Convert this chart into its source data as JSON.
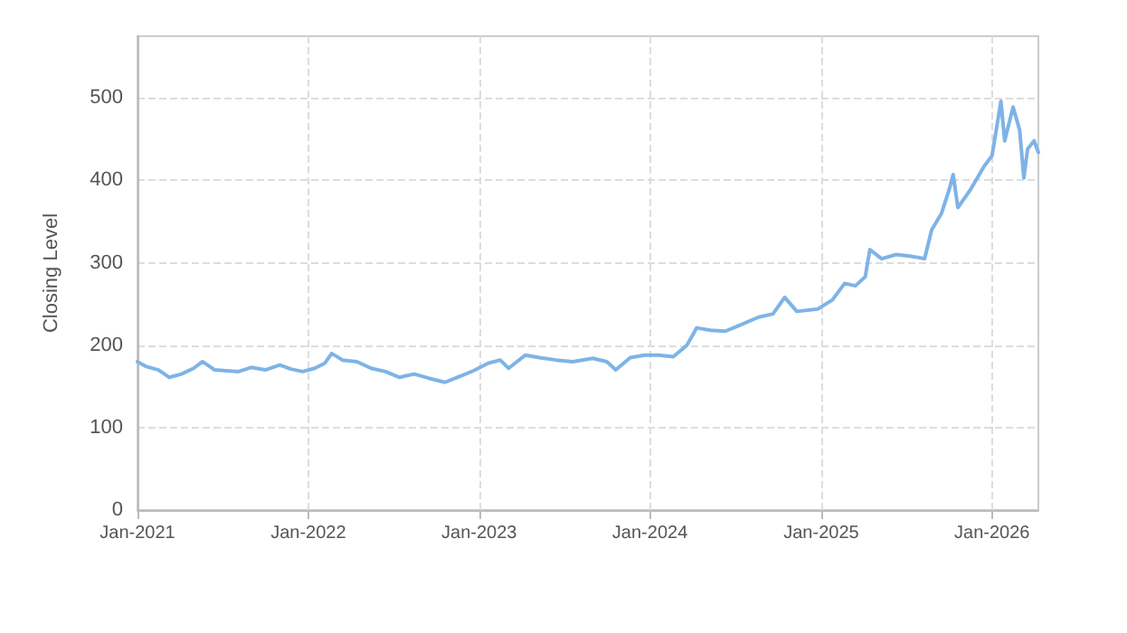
{
  "chart_data": {
    "type": "line",
    "ylabel": "Closing Level",
    "x": [
      "2021-01-01",
      "2021-01-20",
      "2021-02-15",
      "2021-03-10",
      "2021-04-05",
      "2021-05-01",
      "2021-05-20",
      "2021-06-15",
      "2021-07-10",
      "2021-08-05",
      "2021-09-01",
      "2021-10-01",
      "2021-11-01",
      "2021-11-25",
      "2021-12-20",
      "2022-01-15",
      "2022-02-05",
      "2022-02-20",
      "2022-03-15",
      "2022-04-15",
      "2022-05-15",
      "2022-06-15",
      "2022-07-15",
      "2022-08-15",
      "2022-09-15",
      "2022-10-20",
      "2022-11-20",
      "2022-12-20",
      "2023-01-20",
      "2023-02-15",
      "2023-03-05",
      "2023-04-10",
      "2023-05-10",
      "2023-06-15",
      "2023-07-20",
      "2023-09-01",
      "2023-10-01",
      "2023-10-20",
      "2023-11-20",
      "2023-12-20",
      "2024-01-20",
      "2024-02-20",
      "2024-03-20",
      "2024-04-10",
      "2024-05-10",
      "2024-06-10",
      "2024-07-10",
      "2024-08-20",
      "2024-09-20",
      "2024-10-15",
      "2024-11-10",
      "2024-12-25",
      "2025-01-25",
      "2025-02-20",
      "2025-03-15",
      "2025-04-05",
      "2025-04-15",
      "2025-05-10",
      "2025-06-10",
      "2025-07-10",
      "2025-08-10",
      "2025-08-25",
      "2025-09-15",
      "2025-10-01",
      "2025-10-10",
      "2025-10-20",
      "2025-11-15",
      "2025-12-15",
      "2026-01-01",
      "2026-01-20",
      "2026-01-28",
      "2026-02-15",
      "2026-03-01",
      "2026-03-10",
      "2026-03-18",
      "2026-04-01",
      "2026-04-10"
    ],
    "values": [
      180,
      174,
      170,
      161,
      165,
      172,
      180,
      170,
      169,
      168,
      173,
      170,
      176,
      171,
      168,
      172,
      178,
      190,
      182,
      180,
      172,
      168,
      161,
      165,
      160,
      155,
      162,
      169,
      178,
      182,
      172,
      188,
      185,
      182,
      180,
      184,
      180,
      170,
      185,
      188,
      188,
      186,
      200,
      221,
      218,
      217,
      224,
      234,
      238,
      258,
      241,
      244,
      255,
      275,
      272,
      283,
      316,
      305,
      310,
      308,
      305,
      340,
      360,
      388,
      407,
      367,
      388,
      417,
      430,
      496,
      448,
      489,
      461,
      403,
      438,
      448,
      434
    ],
    "color": "#7eb3e6",
    "xlim": [
      "2021-01-01",
      "2026-04-10"
    ],
    "xticks": [
      {
        "value": "2021-01-01",
        "label": "Jan-2021"
      },
      {
        "value": "2022-01-01",
        "label": "Jan-2022"
      },
      {
        "value": "2023-01-01",
        "label": "Jan-2023"
      },
      {
        "value": "2024-01-01",
        "label": "Jan-2024"
      },
      {
        "value": "2025-01-01",
        "label": "Jan-2025"
      },
      {
        "value": "2026-01-01",
        "label": "Jan-2026"
      }
    ],
    "ylim": [
      0,
      575
    ],
    "yticks": [
      0,
      100,
      200,
      300,
      400,
      500
    ],
    "grid": true,
    "marker": "none",
    "line_style": "solid"
  }
}
